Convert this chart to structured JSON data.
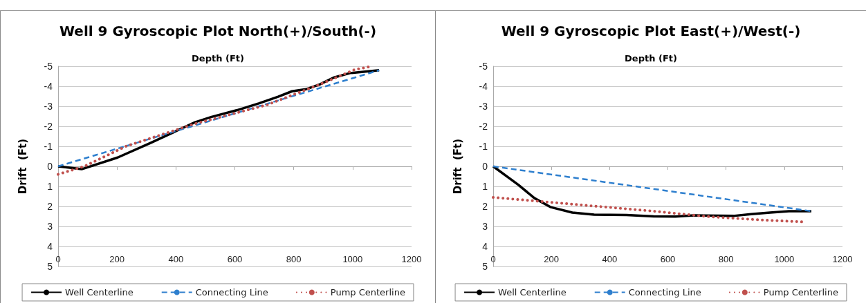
{
  "chart_data": [
    {
      "type": "line",
      "title": "Well 9 Gyroscopic Plot North(+)/South(-)",
      "xlabel": "Depth (Ft)",
      "ylabel": "Drift  (Ft)",
      "xlim": [
        0,
        1200
      ],
      "xticks": [
        0,
        200,
        400,
        600,
        800,
        1000,
        1200
      ],
      "ylim": [
        5,
        -5
      ],
      "yticks": [
        -5,
        -4,
        -3,
        -2,
        -1,
        0,
        1,
        2,
        3,
        4,
        5
      ],
      "grid": "y",
      "legend": "bottom",
      "marker": "none",
      "series": [
        {
          "name": "Well Centerline",
          "color": "#000000",
          "line_style": "solid",
          "x": [
            0,
            80,
            202,
            315,
            465,
            521,
            606,
            681,
            747,
            794,
            841,
            888,
            935,
            991,
            1090
          ],
          "values": [
            0,
            0.14,
            -0.44,
            -1.18,
            -2.2,
            -2.47,
            -2.8,
            -3.14,
            -3.48,
            -3.75,
            -3.85,
            -4.09,
            -4.43,
            -4.66,
            -4.8
          ]
        },
        {
          "name": "Connecting Line",
          "color": "#2e7fce",
          "line_style": "dashed",
          "x": [
            0,
            1090
          ],
          "values": [
            0,
            -4.8
          ]
        },
        {
          "name": "Pump Centerline",
          "color": "#c0504d",
          "line_style": "dotted",
          "x": [
            0,
            89,
            230,
            465,
            709,
            888,
            1007,
            1065
          ],
          "values": [
            0.4,
            0,
            -1.0,
            -2.13,
            -3.07,
            -4.09,
            -4.83,
            -5
          ]
        }
      ]
    },
    {
      "type": "line",
      "title": "Well 9 Gyroscopic Plot East(+)/West(-)",
      "xlabel": "Depth (Ft)",
      "ylabel": "Drift  (Ft)",
      "xlim": [
        0,
        1200
      ],
      "xticks": [
        0,
        200,
        400,
        600,
        800,
        1000,
        1200
      ],
      "ylim": [
        5,
        -5
      ],
      "yticks": [
        -5,
        -4,
        -3,
        -2,
        -1,
        0,
        1,
        2,
        3,
        4,
        5
      ],
      "grid": "y",
      "legend": "bottom",
      "marker": "none",
      "series": [
        {
          "name": "Well Centerline",
          "color": "#000000",
          "line_style": "solid",
          "x": [
            0,
            86,
            142,
            198,
            272,
            347,
            458,
            551,
            626,
            691,
            830,
            886,
            951,
            1016,
            1093
          ],
          "values": [
            0,
            0.92,
            1.59,
            2.04,
            2.31,
            2.41,
            2.43,
            2.5,
            2.51,
            2.45,
            2.47,
            2.39,
            2.31,
            2.24,
            2.24
          ]
        },
        {
          "name": "Connecting Line",
          "color": "#2e7fce",
          "line_style": "dashed",
          "x": [
            0,
            1093
          ],
          "values": [
            0,
            2.24
          ]
        },
        {
          "name": "Pump Centerline",
          "color": "#c0504d",
          "line_style": "dotted",
          "x": [
            0,
            272,
            551,
            737,
            923,
            1074
          ],
          "values": [
            1.55,
            1.89,
            2.24,
            2.51,
            2.68,
            2.78
          ]
        }
      ]
    }
  ]
}
